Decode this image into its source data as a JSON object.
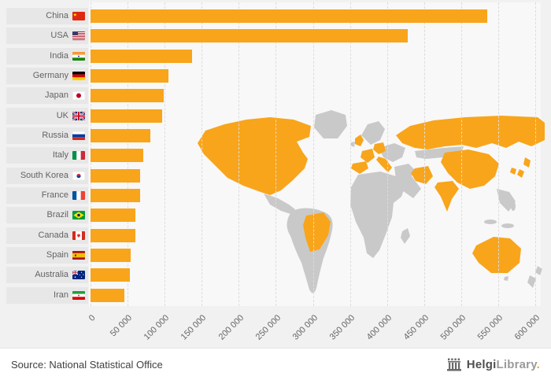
{
  "chart_data": {
    "type": "bar",
    "orientation": "horizontal",
    "title": "",
    "categories": [
      "China",
      "USA",
      "India",
      "Germany",
      "Japan",
      "UK",
      "Russia",
      "Italy",
      "South Korea",
      "France",
      "Brazil",
      "Canada",
      "Spain",
      "Australia",
      "Iran"
    ],
    "values": [
      535000,
      428000,
      137000,
      105000,
      99000,
      97000,
      81000,
      71000,
      67000,
      67000,
      61000,
      61000,
      54000,
      53000,
      46000
    ],
    "flags": [
      "cn",
      "us",
      "in",
      "de",
      "jp",
      "gb",
      "ru",
      "it",
      "kr",
      "fr",
      "br",
      "ca",
      "es",
      "au",
      "ir"
    ],
    "xlim": [
      0,
      600000
    ],
    "x_tick_labels": [
      "0",
      "50 000",
      "100 000",
      "150 000",
      "200 000",
      "250 000",
      "300 000",
      "350 000",
      "400 000",
      "450 000",
      "500 000",
      "550 000",
      "600 000"
    ],
    "bar_color": "#f8a51b",
    "map_base_color": "#c9c9c9",
    "map_highlight_color": "#f8a51b",
    "grid": "vertical-dashed",
    "legend": "none"
  },
  "footer": {
    "source": "Source: National Statistical Office",
    "logo": {
      "brand": "Helgi",
      "suffix": "Library",
      "dot": "."
    }
  }
}
